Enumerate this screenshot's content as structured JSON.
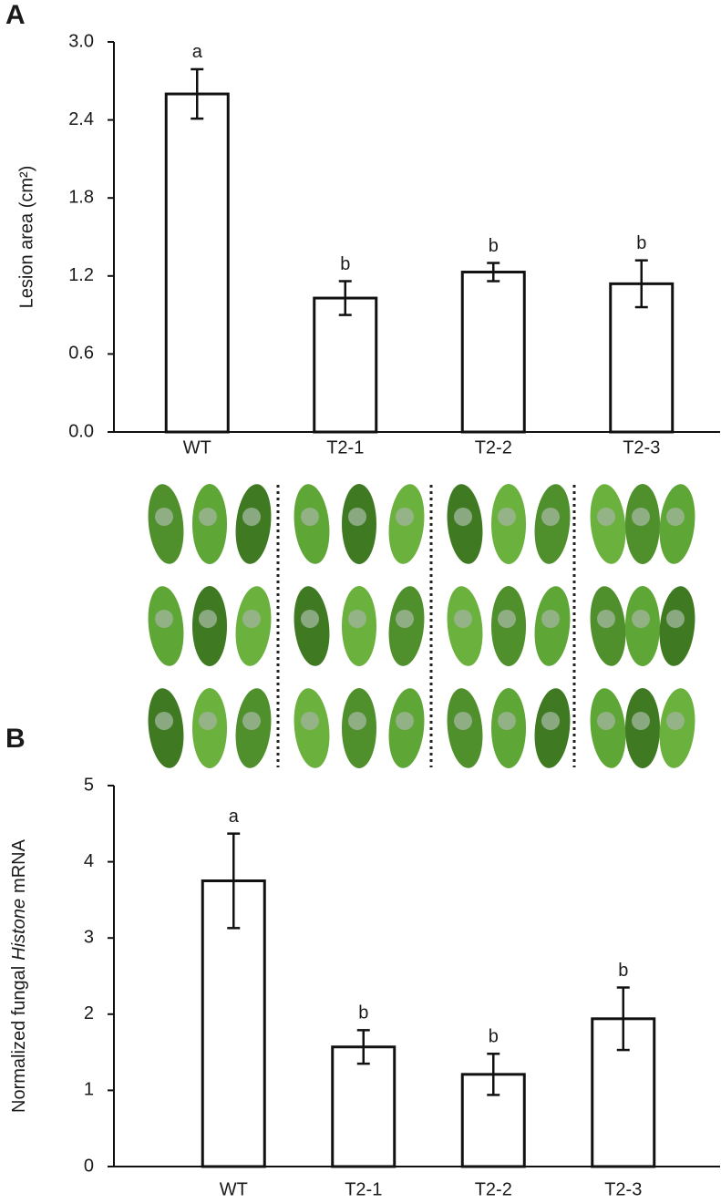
{
  "chart_data": [
    {
      "type": "bar",
      "panel": "A",
      "ylabel": "Lesion area (cm²)",
      "categories": [
        "WT",
        "T2-1",
        "T2-2",
        "T2-3"
      ],
      "values": [
        2.6,
        1.03,
        1.23,
        1.14
      ],
      "errors": [
        0.19,
        0.13,
        0.07,
        0.18
      ],
      "letters": [
        "a",
        "b",
        "b",
        "b"
      ],
      "color": "#ffffff",
      "ylim": [
        0,
        3
      ],
      "yticks": [
        {
          "value": 0,
          "label": "0.0"
        },
        0.6,
        1.2,
        1.8,
        2.4,
        {
          "value": 3,
          "label": "3.0"
        }
      ]
    },
    {
      "type": "bar",
      "panel": "B",
      "ylabel": [
        "Normalized fungal",
        "Histone",
        "mRNA"
      ],
      "categories": [
        "WT",
        "T2-1",
        "T2-2",
        "T2-3"
      ],
      "values": [
        3.75,
        1.57,
        1.21,
        1.94
      ],
      "errors": [
        0.62,
        0.22,
        0.27,
        0.41
      ],
      "letters": [
        "a",
        "b",
        "b",
        "b"
      ],
      "color": "#ffffff",
      "ylim": [
        0,
        5
      ],
      "yticks": [
        0,
        1,
        2,
        3,
        4,
        5
      ]
    }
  ]
}
